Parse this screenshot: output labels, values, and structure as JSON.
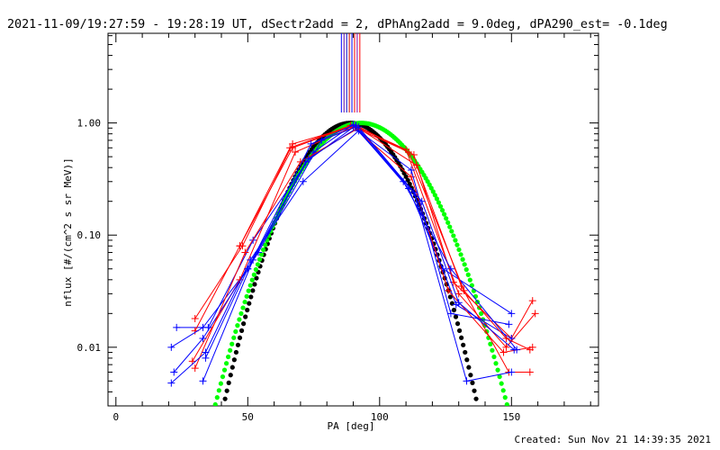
{
  "chart_data": {
    "type": "line",
    "title": "2021-11-09/19:27:59 - 19:28:19 UT, dSectr2add = 2, dPhAng2add = 9.0deg, dPA290_est= -0.1deg",
    "xlabel": "PA [deg]",
    "ylabel": "nflux [#/(cm^2 s sr MeV)]",
    "xlim": [
      -3,
      183
    ],
    "ylim": [
      0.003,
      6.3
    ],
    "yscale": "log",
    "grid": false,
    "footer": "Created: Sun Nov 21 14:39:35 2021",
    "x_ticks": [
      {
        "value": 0,
        "label": "0"
      },
      {
        "value": 50,
        "label": "50"
      },
      {
        "value": 100,
        "label": "100"
      },
      {
        "value": 150,
        "label": "150"
      }
    ],
    "y_ticks": [
      {
        "value": 0.01,
        "label": "0.01"
      },
      {
        "value": 0.1,
        "label": "0.10"
      },
      {
        "value": 1,
        "label": "1.00"
      }
    ],
    "vlines": [
      {
        "x": 85.5,
        "color": "#0000ff"
      },
      {
        "x": 86.5,
        "color": "#5500aa"
      },
      {
        "x": 87.5,
        "color": "#0000cc"
      },
      {
        "x": 88.5,
        "color": "#cc0000"
      },
      {
        "x": 89.5,
        "color": "#0000ff"
      },
      {
        "x": 90.5,
        "color": "#ff0000"
      },
      {
        "x": 91.5,
        "color": "#8800aa"
      },
      {
        "x": 92.5,
        "color": "#ff0000"
      }
    ],
    "series": [
      {
        "color": "#ff0000",
        "marker": "+",
        "x": [
          30,
          48,
          67,
          91,
          113,
          128,
          150,
          158
        ],
        "y": [
          0.018,
          0.08,
          0.65,
          0.95,
          0.52,
          0.038,
          0.012,
          0.026
        ]
      },
      {
        "color": "#0000ff",
        "marker": "+",
        "x": [
          23,
          35,
          52,
          75,
          90,
          111,
          124,
          150
        ],
        "y": [
          0.015,
          0.015,
          0.09,
          0.55,
          0.97,
          0.26,
          0.05,
          0.02
        ]
      },
      {
        "color": "#ff0000",
        "marker": "+",
        "x": [
          30,
          47,
          67,
          90,
          110,
          130,
          148,
          159
        ],
        "y": [
          0.014,
          0.08,
          0.6,
          0.95,
          0.58,
          0.03,
          0.01,
          0.02
        ]
      },
      {
        "color": "#0000ff",
        "marker": "+",
        "x": [
          21,
          33,
          50,
          72,
          91,
          113,
          129,
          150
        ],
        "y": [
          0.01,
          0.015,
          0.05,
          0.45,
          0.95,
          0.24,
          0.024,
          0.012
        ]
      },
      {
        "color": "#ff0000",
        "marker": "+",
        "x": [
          29,
          47,
          68,
          90,
          112,
          126,
          147,
          158
        ],
        "y": [
          0.0075,
          0.04,
          0.55,
          0.92,
          0.33,
          0.032,
          0.009,
          0.01
        ]
      },
      {
        "color": "#0000ff",
        "marker": "+",
        "x": [
          22,
          33,
          54,
          78,
          91,
          109,
          127,
          152
        ],
        "y": [
          0.006,
          0.012,
          0.07,
          0.7,
          0.92,
          0.3,
          0.05,
          0.0095
        ]
      },
      {
        "color": "#ff0000",
        "marker": "+",
        "x": [
          30,
          49,
          70,
          92,
          114,
          131,
          149,
          157
        ],
        "y": [
          0.0065,
          0.07,
          0.45,
          0.9,
          0.42,
          0.035,
          0.006,
          0.006
        ]
      },
      {
        "color": "#0000ff",
        "marker": "+",
        "x": [
          21,
          34,
          51,
          71,
          92,
          112,
          127,
          149
        ],
        "y": [
          0.0048,
          0.009,
          0.06,
          0.3,
          0.85,
          0.38,
          0.02,
          0.016
        ]
      },
      {
        "color": "#ff0000",
        "marker": "+",
        "x": [
          47,
          66,
          89,
          111,
          132,
          148,
          157
        ],
        "y": [
          0.08,
          0.6,
          0.95,
          0.55,
          0.032,
          0.012,
          0.0095
        ]
      },
      {
        "color": "#0000ff",
        "marker": "+",
        "x": [
          33,
          52,
          73,
          92,
          113,
          133,
          150
        ],
        "y": [
          0.005,
          0.06,
          0.48,
          0.92,
          0.24,
          0.005,
          0.006
        ]
      },
      {
        "color": "#0000ff",
        "marker": "+",
        "x": [
          34,
          50,
          74,
          90,
          116,
          130,
          151
        ],
        "y": [
          0.008,
          0.05,
          0.65,
          0.95,
          0.2,
          0.025,
          0.0095
        ]
      }
    ],
    "fits": [
      {
        "color": "#000000",
        "kind": "dots",
        "x_range": [
          40,
          147
        ],
        "center": 89,
        "width": 20
      },
      {
        "color": "#00ff00",
        "kind": "dots",
        "x_range": [
          37,
          149
        ],
        "center": 93,
        "width": 23
      }
    ]
  }
}
